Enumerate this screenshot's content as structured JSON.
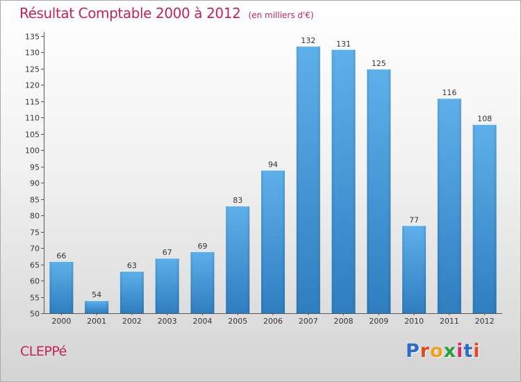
{
  "header": {
    "title": "Résultat Comptable 2000 à 2012",
    "unit": "(en milliers d'€)"
  },
  "footer": {
    "commune": "CLEPPé",
    "logo_letters": [
      "P",
      "r",
      "o",
      "x",
      "i",
      "t",
      "i"
    ]
  },
  "colors": {
    "accent": "#c0245a",
    "bar_top": "#5eb0ea",
    "bar_bottom": "#2f7ec0",
    "logo": [
      "#2b6cc4",
      "#e04a1f",
      "#f0a020",
      "#2a9d3a",
      "#d42a6a",
      "#2b6cc4",
      "#e04a1f"
    ]
  },
  "chart_data": {
    "type": "bar",
    "title": "Résultat Comptable 2000 à 2012",
    "ylabel": "",
    "xlabel": "",
    "categories": [
      "2000",
      "2001",
      "2002",
      "2003",
      "2004",
      "2005",
      "2006",
      "2007",
      "2008",
      "2009",
      "2010",
      "2011",
      "2012"
    ],
    "values": [
      66,
      54,
      63,
      67,
      69,
      83,
      94,
      132,
      131,
      125,
      77,
      116,
      108
    ],
    "ylim": [
      50,
      135
    ],
    "yticks": [
      50,
      55,
      60,
      65,
      70,
      75,
      80,
      85,
      90,
      95,
      100,
      105,
      110,
      115,
      120,
      125,
      130,
      135
    ],
    "grid": false
  }
}
